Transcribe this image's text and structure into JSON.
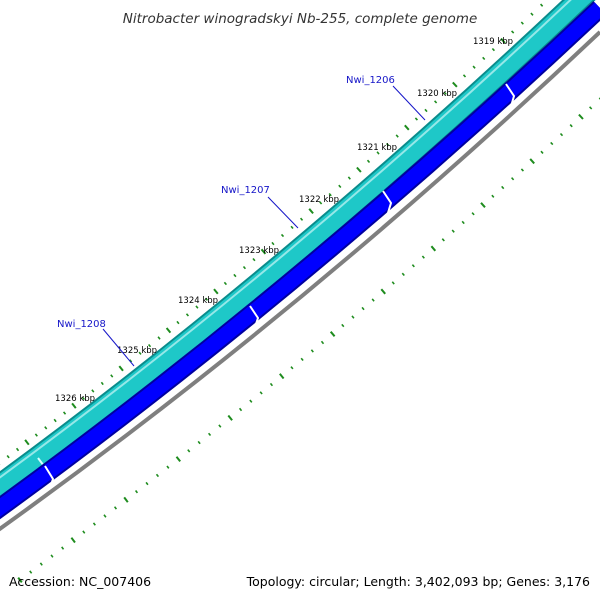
{
  "title": "Nitrobacter winogradskyi Nb-255, complete genome",
  "accession": "Accession: NC_007406",
  "summary": "Topology: circular; Length: 3,402,093 bp; Genes: 3,176",
  "colors": {
    "forward_strand_fill": "#1ec8c8",
    "forward_strand_edge": "#0a8c8c",
    "forward_strand_highlight": "#b4f0f0",
    "reverse_strand_fill": "#0000ff",
    "reverse_strand_edge": "#0000a0",
    "backbone": "#7f7f7f",
    "tick_marks": "#1e8c1e",
    "gene_label": "#1515c8",
    "kbp_label": "#000000"
  },
  "kbp_markers": [
    "1319 kbp",
    "1320 kbp",
    "1321 kbp",
    "1322 kbp",
    "1323 kbp",
    "1324 kbp",
    "1325 kbp",
    "1326 kbp"
  ],
  "gene_labels": [
    "Nwi_1206",
    "Nwi_1207",
    "Nwi_1208"
  ]
}
